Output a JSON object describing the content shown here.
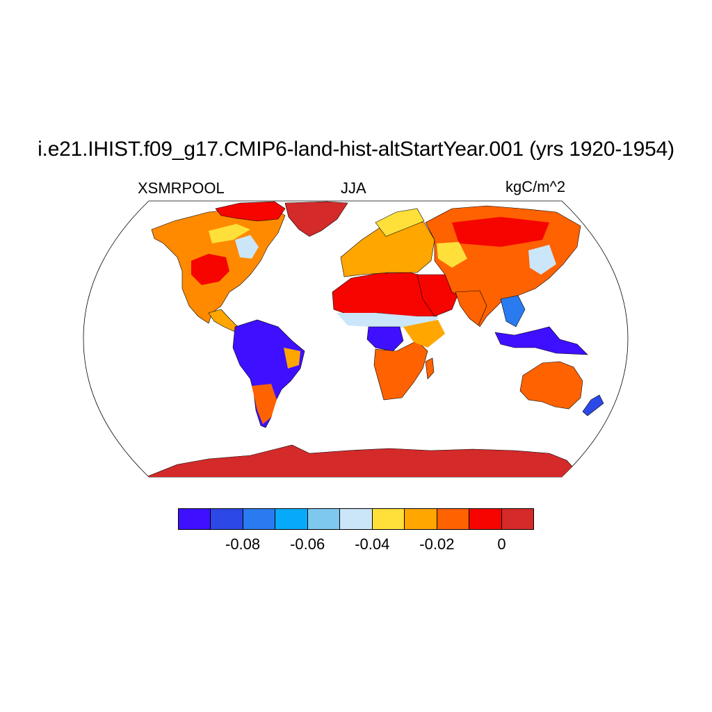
{
  "title": "i.e21.IHIST.f09_g17.CMIP6-land-hist-altStartYear.001 (yrs 1920-1954)",
  "subtitle_left": "XSMRPOOL",
  "subtitle_center": "JJA",
  "subtitle_right": "kgC/m^2",
  "colorbar": {
    "colors": [
      "#3f10ff",
      "#2c48e6",
      "#2a7bf0",
      "#06aaf8",
      "#7ec8ee",
      "#cbe6f8",
      "#ffe03a",
      "#ffa600",
      "#ff6200",
      "#f60400",
      "#d42a2a"
    ],
    "tick_labels": [
      "-0.08",
      "-0.06",
      "-0.04",
      "-0.02",
      "0"
    ]
  }
}
